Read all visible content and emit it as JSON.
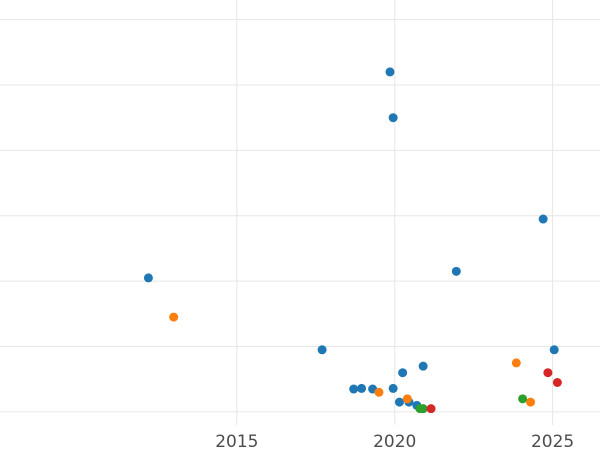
{
  "chart_data": {
    "type": "scatter",
    "title": "",
    "xlabel": "",
    "ylabel": "",
    "xlim": [
      2007.5,
      2026.5
    ],
    "ylim": [
      -0.2,
      6.3
    ],
    "x_ticks": [
      2015,
      2020,
      2025
    ],
    "x_tick_labels": [
      "2015",
      "2020",
      "2025"
    ],
    "y_gridlines": [
      0,
      1,
      2,
      3,
      4,
      5,
      6
    ],
    "y_tick_labels_visible": false,
    "grid": true,
    "legend": "none",
    "series": [
      {
        "color": "#1f77b4",
        "points": [
          {
            "x": 2012.2,
            "y": 2.05
          },
          {
            "x": 2017.7,
            "y": 0.95
          },
          {
            "x": 2018.7,
            "y": 0.35
          },
          {
            "x": 2018.95,
            "y": 0.36
          },
          {
            "x": 2019.3,
            "y": 0.35
          },
          {
            "x": 2019.85,
            "y": 5.2
          },
          {
            "x": 2019.95,
            "y": 4.5
          },
          {
            "x": 2019.95,
            "y": 0.36
          },
          {
            "x": 2020.15,
            "y": 0.15
          },
          {
            "x": 2020.25,
            "y": 0.6
          },
          {
            "x": 2020.45,
            "y": 0.15
          },
          {
            "x": 2020.7,
            "y": 0.1
          },
          {
            "x": 2020.9,
            "y": 0.7
          },
          {
            "x": 2021.95,
            "y": 2.15
          },
          {
            "x": 2024.7,
            "y": 2.95
          },
          {
            "x": 2025.05,
            "y": 0.95
          }
        ]
      },
      {
        "color": "#ff7f0e",
        "points": [
          {
            "x": 2013.0,
            "y": 1.45
          },
          {
            "x": 2019.5,
            "y": 0.3
          },
          {
            "x": 2020.4,
            "y": 0.2
          },
          {
            "x": 2023.85,
            "y": 0.75
          },
          {
            "x": 2024.3,
            "y": 0.15
          }
        ]
      },
      {
        "color": "#2ca02c",
        "points": [
          {
            "x": 2020.8,
            "y": 0.05
          },
          {
            "x": 2020.9,
            "y": 0.05
          },
          {
            "x": 2024.05,
            "y": 0.2
          }
        ]
      },
      {
        "color": "#d62728",
        "points": [
          {
            "x": 2021.15,
            "y": 0.05
          },
          {
            "x": 2024.85,
            "y": 0.6
          },
          {
            "x": 2025.15,
            "y": 0.45
          }
        ]
      }
    ]
  }
}
